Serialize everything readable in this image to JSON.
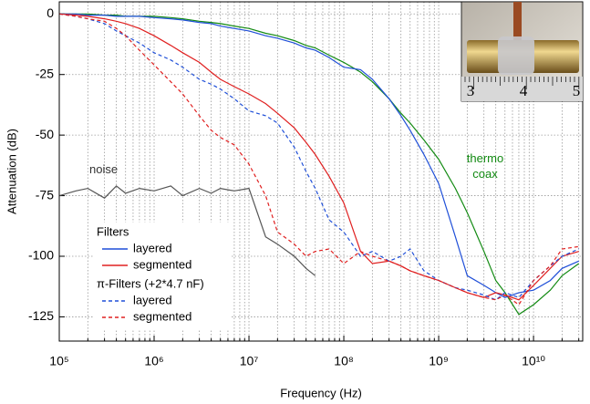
{
  "chart_data": {
    "type": "line",
    "xscale": "log",
    "xlabel": "Frequency (Hz)",
    "ylabel": "Attenuation (dB)",
    "xlim": [
      100000.0,
      33000000000.0
    ],
    "ylim": [
      -135,
      5
    ],
    "xticks": [
      {
        "value": 100000.0,
        "label": "10⁵"
      },
      {
        "value": 1000000.0,
        "label": "10⁶"
      },
      {
        "value": 10000000.0,
        "label": "10⁷"
      },
      {
        "value": 100000000.0,
        "label": "10⁸"
      },
      {
        "value": 1000000000.0,
        "label": "10⁹"
      },
      {
        "value": 10000000000.0,
        "label": "10¹⁰"
      }
    ],
    "yticks": [
      0,
      -25,
      -50,
      -75,
      -100,
      -125
    ],
    "grid": true,
    "minor_grid": true,
    "x": [
      100000.0,
      150000.0,
      200000.0,
      300000.0,
      400000.0,
      500000.0,
      700000.0,
      1000000.0,
      1500000.0,
      2000000.0,
      3000000.0,
      4000000.0,
      5000000.0,
      7000000.0,
      10000000.0,
      15000000.0,
      20000000.0,
      30000000.0,
      40000000.0,
      50000000.0,
      70000000.0,
      100000000.0,
      150000000.0,
      200000000.0,
      300000000.0,
      400000000.0,
      500000000.0,
      700000000.0,
      1000000000.0,
      1500000000.0,
      2000000000.0,
      3000000000.0,
      4000000000.0,
      5000000000.0,
      7000000000.0,
      10000000000.0,
      15000000000.0,
      20000000000.0,
      30000000000.0
    ],
    "series_groups": [
      {
        "title": "Filters",
        "series": [
          {
            "name": "layered",
            "color": "#1f4fd8",
            "dashed": false,
            "values": [
              0,
              0,
              -0.5,
              -0.5,
              -1,
              -1,
              -1,
              -1.5,
              -2,
              -2.5,
              -3.5,
              -4,
              -5,
              -6,
              -7,
              -9,
              -10,
              -12,
              -14,
              -15,
              -18,
              -22,
              -23,
              -27,
              -35,
              -42,
              -48,
              -58,
              -70,
              -92,
              -108,
              -112,
              -115,
              -117,
              -115,
              -114,
              -110,
              -105,
              -102
            ]
          },
          {
            "name": "segmented",
            "color": "#e02020",
            "dashed": false,
            "values": [
              0,
              -0.5,
              -1,
              -2,
              -3,
              -4,
              -6,
              -9,
              -13,
              -16,
              -20,
              -24,
              -27,
              -30,
              -33,
              -37,
              -41,
              -47,
              -53,
              -58,
              -67,
              -78,
              -98,
              -103,
              -102,
              -104,
              -106,
              -108,
              -110,
              -113,
              -115,
              -117,
              -115,
              -116,
              -118,
              -112,
              -105,
              -100,
              -98
            ]
          }
        ]
      },
      {
        "title": "π-Filters (+2*4.7 nF)",
        "series": [
          {
            "name": "layered",
            "color": "#1f4fd8",
            "dashed": true,
            "values": [
              0,
              -1,
              -2,
              -4,
              -7,
              -9,
              -12,
              -16,
              -19,
              -22,
              -27,
              -29,
              -31,
              -35,
              -40,
              -42,
              -45,
              -55,
              -65,
              -72,
              -85,
              -90,
              -100,
              -98,
              -102,
              -100,
              -97,
              -106,
              -110,
              -113,
              -114,
              -116,
              -118,
              -115,
              -117,
              -110,
              -104,
              -100,
              -97
            ]
          },
          {
            "name": "segmented",
            "color": "#e02020",
            "dashed": true,
            "values": [
              0,
              -1,
              -2,
              -3,
              -6,
              -9,
              -15,
              -21,
              -28,
              -33,
              -42,
              -48,
              -51,
              -54,
              -62,
              -75,
              -90,
              -95,
              -100,
              -98,
              -97,
              -103,
              -98,
              -100,
              -102,
              -104,
              -106,
              -108,
              -110,
              -113,
              -115,
              -117,
              -118,
              -116,
              -120,
              -110,
              -104,
              -97,
              -96
            ]
          }
        ]
      }
    ],
    "annotated_series": [
      {
        "label": "noise",
        "color": "#555555",
        "values": [
          -75,
          -73,
          -72,
          -76,
          -71,
          -74,
          -72,
          -73,
          -71,
          -75,
          -72,
          -74,
          -72,
          -73,
          -72,
          -92,
          -95,
          -100,
          -105,
          -108,
          null,
          null,
          null,
          null,
          null,
          null,
          null,
          null,
          null,
          null,
          null,
          null,
          null,
          null,
          null,
          null,
          null,
          null,
          null
        ]
      },
      {
        "label": "thermo coax",
        "color": "#128a12",
        "values": [
          0,
          0,
          0,
          -0.5,
          -0.5,
          -1,
          -1,
          -1,
          -1.5,
          -2,
          -3,
          -3.5,
          -4,
          -5,
          -6,
          -8,
          -9,
          -11,
          -13,
          -14,
          -17,
          -20,
          -24,
          -28,
          -35,
          -41,
          -45,
          -52,
          -60,
          -72,
          -82,
          -98,
          -110,
          -115,
          -124,
          -120,
          -114,
          -108,
          -103
        ]
      }
    ]
  },
  "inset": {
    "ruler_labels": [
      "3",
      "4",
      "5"
    ]
  }
}
